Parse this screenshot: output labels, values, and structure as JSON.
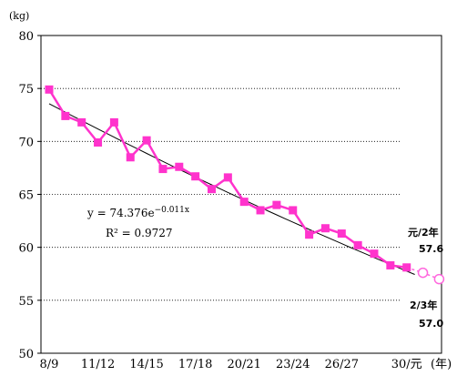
{
  "chart_data": {
    "type": "line",
    "ylabel": "(kg)",
    "xlabel": "(年)",
    "ylim": [
      50,
      80
    ],
    "yticks": [
      50,
      55,
      60,
      65,
      70,
      75,
      80
    ],
    "grid": "horizontal-dotted",
    "xtick_labels": [
      {
        "label": "8/9",
        "index": 0
      },
      {
        "label": "11/12",
        "index": 3
      },
      {
        "label": "14/15",
        "index": 6
      },
      {
        "label": "17/18",
        "index": 9
      },
      {
        "label": "20/21",
        "index": 12
      },
      {
        "label": "23/24",
        "index": 15
      },
      {
        "label": "26/27",
        "index": 18
      },
      {
        "label": "30/元",
        "index": 22
      }
    ],
    "series": [
      {
        "color": "#ff33cc",
        "marker": "square",
        "values": [
          74.9,
          72.4,
          71.8,
          69.9,
          71.8,
          68.5,
          70.1,
          67.4,
          67.6,
          66.7,
          65.5,
          66.6,
          64.3,
          63.5,
          64.0,
          63.5,
          61.2,
          61.8,
          61.3,
          60.2,
          59.4,
          58.3,
          58.1
        ]
      },
      {
        "color": "#ff66dd",
        "marker": "open-circle",
        "start_index": 23,
        "values": [
          57.6,
          57.0
        ]
      }
    ],
    "trendline": {
      "equation": "y = 74.376e",
      "exponent": "−0.011x",
      "r2": "R² = 0.9727",
      "a": 74.376,
      "b": -0.011
    },
    "annotations": [
      {
        "label": "元/2年",
        "value": "57.6"
      },
      {
        "label": "2/3年",
        "value": "57.0"
      }
    ]
  }
}
